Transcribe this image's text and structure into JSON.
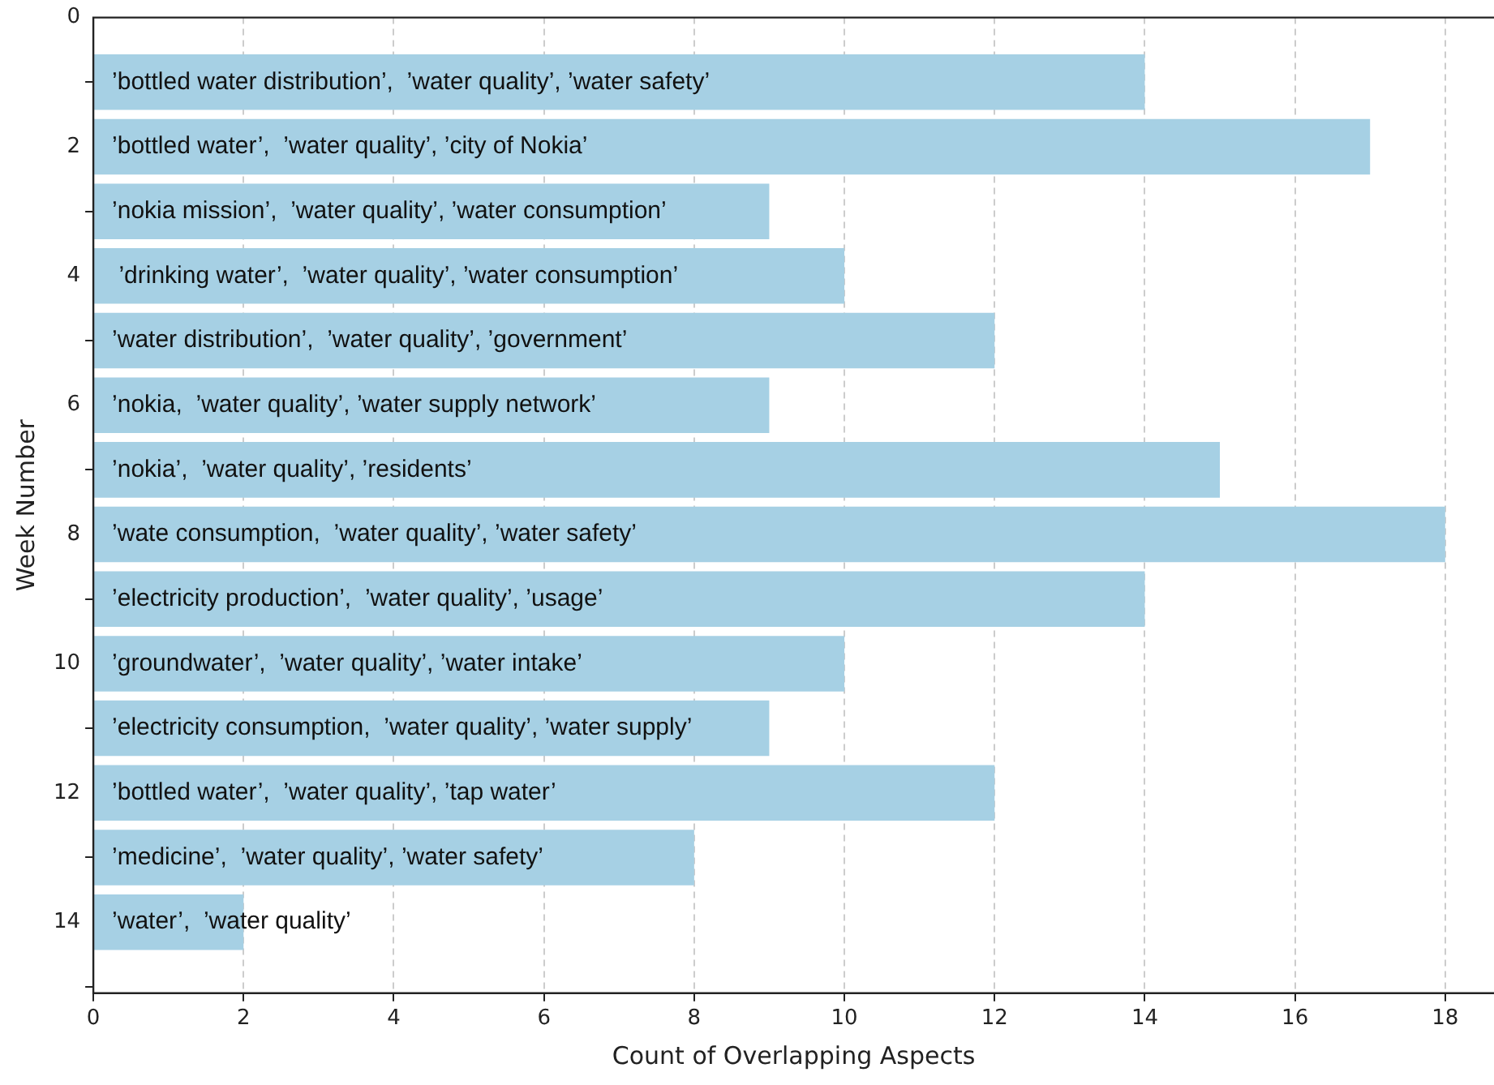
{
  "chart_data": {
    "type": "bar",
    "orientation": "horizontal",
    "xlabel": "Count of Overlapping Aspects",
    "ylabel": "Week Number",
    "x": [
      1,
      2,
      3,
      4,
      5,
      6,
      7,
      8,
      9,
      10,
      11,
      12,
      13,
      14
    ],
    "values": [
      14,
      17,
      9,
      10,
      12,
      9,
      15,
      18,
      14,
      10,
      9,
      12,
      8,
      2
    ],
    "value_labels": [
      "’bottled water distribution’,  ’water quality’, ’water safety’",
      "’bottled water’,  ’water quality’, ’city of Nokia’",
      "’nokia mission’,  ’water quality’, ’water consumption’",
      " ’drinking water’,  ’water quality’, ’water consumption’",
      "’water distribution’,  ’water quality’, ’government’",
      "’nokia,  ’water quality’, ’water supply network’",
      "’nokia’,  ’water quality’, ’residents’",
      "’wate consumption,  ’water quality’, ’water safety’",
      "’electricity production’,  ’water quality’, ’usage’",
      "’groundwater’,  ’water quality’, ’water intake’",
      "’electricity consumption,  ’water quality’, ’water supply’",
      "’bottled water’,  ’water quality’, ’tap water’",
      "’medicine’,  ’water quality’, ’water safety’",
      "’water’,  ’water quality’"
    ],
    "color": "#a6d0e4",
    "xlim": [
      0,
      18.65
    ],
    "xticks": [
      0,
      2,
      4,
      6,
      8,
      10,
      12,
      14,
      16,
      18
    ],
    "ylim": [
      15.1,
      0
    ],
    "yticks": [
      0,
      2,
      4,
      6,
      8,
      10,
      12,
      14
    ],
    "grid": "x"
  }
}
